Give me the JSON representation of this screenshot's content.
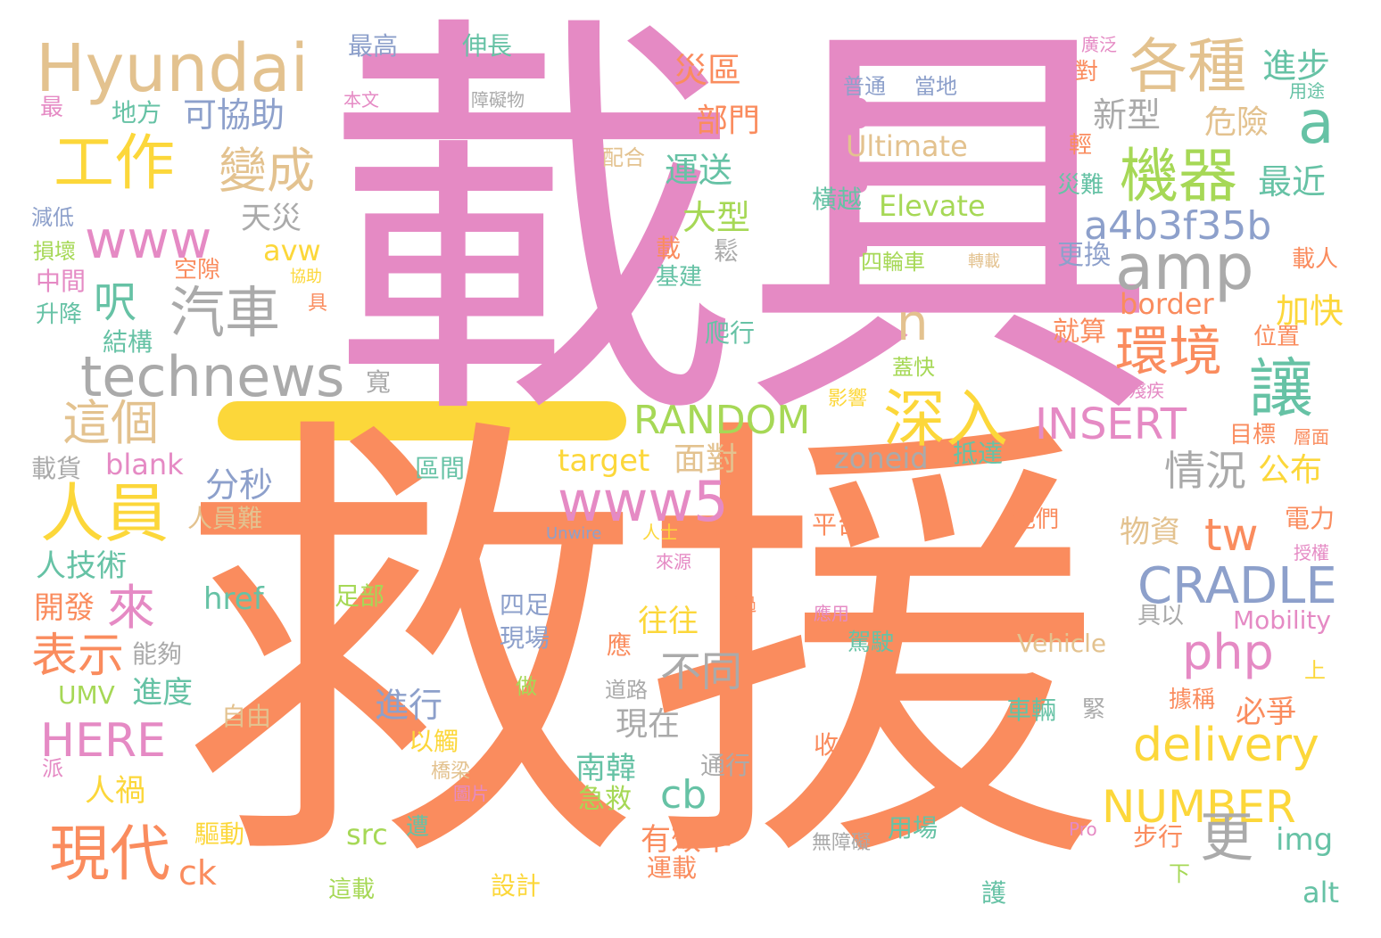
{
  "colors": {
    "pink": "#e58ac4",
    "orange": "#fa8c5e",
    "yellow": "#fcd73a",
    "gray": "#aaaaaa",
    "tan": "#e3c28f",
    "green": "#a6d856",
    "blue": "#8da0cb",
    "teal": "#66c2a5",
    "background": "#ffffff"
  },
  "words": [
    {
      "text": "載具",
      "color": "pink"
    },
    {
      "text": "救援",
      "color": "orange"
    },
    {
      "text": "Hyundai",
      "color": "tan"
    },
    {
      "text": "工作",
      "color": "yellow"
    },
    {
      "text": "www",
      "color": "pink"
    },
    {
      "text": "變成",
      "color": "tan"
    },
    {
      "text": "汽車",
      "color": "gray"
    },
    {
      "text": "technews",
      "color": "gray"
    },
    {
      "text": "人員",
      "color": "yellow"
    },
    {
      "text": "這個",
      "color": "tan"
    },
    {
      "text": "各種",
      "color": "tan"
    },
    {
      "text": "機器",
      "color": "green"
    },
    {
      "text": "amp",
      "color": "gray"
    },
    {
      "text": "環境",
      "color": "orange"
    },
    {
      "text": "讓",
      "color": "teal"
    },
    {
      "text": "深入",
      "color": "yellow"
    },
    {
      "text": "RANDOM",
      "color": "green"
    },
    {
      "text": "INSERT",
      "color": "pink"
    },
    {
      "text": "www5",
      "color": "pink"
    },
    {
      "text": "CRADLE",
      "color": "blue"
    },
    {
      "text": "delivery",
      "color": "yellow"
    },
    {
      "text": "NUMBER",
      "color": "yellow"
    },
    {
      "text": "php",
      "color": "pink"
    },
    {
      "text": "更",
      "color": "gray"
    },
    {
      "text": "a4b3f35b",
      "color": "blue"
    },
    {
      "text": "現代",
      "color": "orange"
    },
    {
      "text": "HERE",
      "color": "pink"
    },
    {
      "text": "表示",
      "color": "orange"
    },
    {
      "text": "來",
      "color": "pink"
    },
    {
      "text": "cb",
      "color": "teal"
    },
    {
      "text": "不同",
      "color": "gray"
    },
    {
      "text": "情況",
      "color": "gray"
    },
    {
      "text": "tw",
      "color": "orange"
    },
    {
      "text": "a",
      "color": "teal"
    },
    {
      "text": "n",
      "color": "tan"
    },
    {
      "text": "呎",
      "color": "teal"
    },
    {
      "text": "進步",
      "color": "teal"
    },
    {
      "text": "新型",
      "color": "gray"
    },
    {
      "text": "危險",
      "color": "tan"
    },
    {
      "text": "最近",
      "color": "teal"
    },
    {
      "text": "災區",
      "color": "orange"
    },
    {
      "text": "部門",
      "color": "orange"
    },
    {
      "text": "運送",
      "color": "teal"
    },
    {
      "text": "大型",
      "color": "green"
    },
    {
      "text": "可協助",
      "color": "blue"
    },
    {
      "text": "天災",
      "color": "gray"
    },
    {
      "text": "avw",
      "color": "yellow"
    },
    {
      "text": "分秒",
      "color": "blue"
    },
    {
      "text": "blank",
      "color": "pink"
    },
    {
      "text": "target",
      "color": "yellow"
    },
    {
      "text": "面對",
      "color": "tan"
    },
    {
      "text": "zoneid",
      "color": "gray"
    },
    {
      "text": "抵達",
      "color": "teal"
    },
    {
      "text": "人技術",
      "color": "teal"
    },
    {
      "text": "開發",
      "color": "orange"
    },
    {
      "text": "href",
      "color": "teal"
    },
    {
      "text": "往往",
      "color": "yellow"
    },
    {
      "text": "物資",
      "color": "tan"
    },
    {
      "text": "公布",
      "color": "yellow"
    },
    {
      "text": "加快",
      "color": "yellow"
    },
    {
      "text": "border",
      "color": "orange"
    },
    {
      "text": "就算",
      "color": "orange"
    },
    {
      "text": "更換",
      "color": "blue"
    },
    {
      "text": "Ultimate",
      "color": "tan"
    },
    {
      "text": "Elevate",
      "color": "green"
    },
    {
      "text": "橫越",
      "color": "teal"
    },
    {
      "text": "四輪車",
      "color": "green"
    },
    {
      "text": "轉載",
      "color": "tan"
    },
    {
      "text": "最高",
      "color": "blue"
    },
    {
      "text": "伸長",
      "color": "teal"
    },
    {
      "text": "普通",
      "color": "blue"
    },
    {
      "text": "當地",
      "color": "blue"
    },
    {
      "text": "本文",
      "color": "pink"
    },
    {
      "text": "障礙物",
      "color": "gray"
    },
    {
      "text": "配合",
      "color": "tan"
    },
    {
      "text": "地方",
      "color": "teal"
    },
    {
      "text": "最",
      "color": "pink"
    },
    {
      "text": "減低",
      "color": "blue"
    },
    {
      "text": "損壞",
      "color": "green"
    },
    {
      "text": "中間",
      "color": "pink"
    },
    {
      "text": "升降",
      "color": "teal"
    },
    {
      "text": "結構",
      "color": "teal"
    },
    {
      "text": "空隙",
      "color": "orange"
    },
    {
      "text": "協助",
      "color": "yellow"
    },
    {
      "text": "具",
      "color": "orange"
    },
    {
      "text": "寬",
      "color": "gray"
    },
    {
      "text": "載",
      "color": "orange"
    },
    {
      "text": "鬆",
      "color": "gray"
    },
    {
      "text": "基建",
      "color": "teal"
    },
    {
      "text": "爬行",
      "color": "teal"
    },
    {
      "text": "蓋快",
      "color": "green"
    },
    {
      "text": "影響",
      "color": "yellow"
    },
    {
      "text": "殘疾",
      "color": "pink"
    },
    {
      "text": "目標",
      "color": "orange"
    },
    {
      "text": "層面",
      "color": "orange"
    },
    {
      "text": "區間",
      "color": "teal"
    },
    {
      "text": "載貨",
      "color": "gray"
    },
    {
      "text": "人員難",
      "color": "tan"
    },
    {
      "text": "平台",
      "color": "orange"
    },
    {
      "text": "他們",
      "color": "orange"
    },
    {
      "text": "電力",
      "color": "orange"
    },
    {
      "text": "授權",
      "color": "pink"
    },
    {
      "text": "Unwire",
      "color": "blue"
    },
    {
      "text": "人士",
      "color": "yellow"
    },
    {
      "text": "來源",
      "color": "pink"
    },
    {
      "text": "足部",
      "color": "green"
    },
    {
      "text": "四足",
      "color": "blue"
    },
    {
      "text": "現場",
      "color": "blue"
    },
    {
      "text": "越過",
      "color": "orange"
    },
    {
      "text": "應用",
      "color": "pink"
    },
    {
      "text": "具以",
      "color": "gray"
    },
    {
      "text": "Mobility",
      "color": "pink"
    },
    {
      "text": "Vehicle",
      "color": "tan"
    },
    {
      "text": "駕駛",
      "color": "teal"
    },
    {
      "text": "能夠",
      "color": "gray"
    },
    {
      "text": "進度",
      "color": "teal"
    },
    {
      "text": "UMV",
      "color": "green"
    },
    {
      "text": "應",
      "color": "orange"
    },
    {
      "text": "上",
      "color": "yellow"
    },
    {
      "text": "進行",
      "color": "blue"
    },
    {
      "text": "現在",
      "color": "gray"
    },
    {
      "text": "必爭",
      "color": "orange"
    },
    {
      "text": "道路",
      "color": "gray"
    },
    {
      "text": "做",
      "color": "green"
    },
    {
      "text": "自由",
      "color": "tan"
    },
    {
      "text": "車輛",
      "color": "teal"
    },
    {
      "text": "緊",
      "color": "gray"
    },
    {
      "text": "據稱",
      "color": "orange"
    },
    {
      "text": "人禍",
      "color": "yellow"
    },
    {
      "text": "以觸",
      "color": "yellow"
    },
    {
      "text": "南韓",
      "color": "teal"
    },
    {
      "text": "通行",
      "color": "gray"
    },
    {
      "text": "收起",
      "color": "orange"
    },
    {
      "text": "派",
      "color": "pink"
    },
    {
      "text": "橋梁",
      "color": "tan"
    },
    {
      "text": "圖片",
      "color": "pink"
    },
    {
      "text": "急救",
      "color": "green"
    },
    {
      "text": "有效率",
      "color": "orange"
    },
    {
      "text": "src",
      "color": "green"
    },
    {
      "text": "img",
      "color": "teal"
    },
    {
      "text": "驅動",
      "color": "yellow"
    },
    {
      "text": "ck",
      "color": "orange"
    },
    {
      "text": "遭",
      "color": "teal"
    },
    {
      "text": "用場",
      "color": "teal"
    },
    {
      "text": "無障礙",
      "color": "gray"
    },
    {
      "text": "Pro",
      "color": "pink"
    },
    {
      "text": "步行",
      "color": "orange"
    },
    {
      "text": "運載",
      "color": "orange"
    },
    {
      "text": "設計",
      "color": "yellow"
    },
    {
      "text": "這載",
      "color": "green"
    },
    {
      "text": "護",
      "color": "teal"
    },
    {
      "text": "下",
      "color": "green"
    },
    {
      "text": "alt",
      "color": "teal"
    },
    {
      "text": "廣泛",
      "color": "pink"
    },
    {
      "text": "對",
      "color": "orange"
    },
    {
      "text": "用途",
      "color": "teal"
    },
    {
      "text": "輕",
      "color": "orange"
    },
    {
      "text": "災難",
      "color": "teal"
    },
    {
      "text": "載人",
      "color": "orange"
    },
    {
      "text": "位置",
      "color": "orange"
    }
  ]
}
